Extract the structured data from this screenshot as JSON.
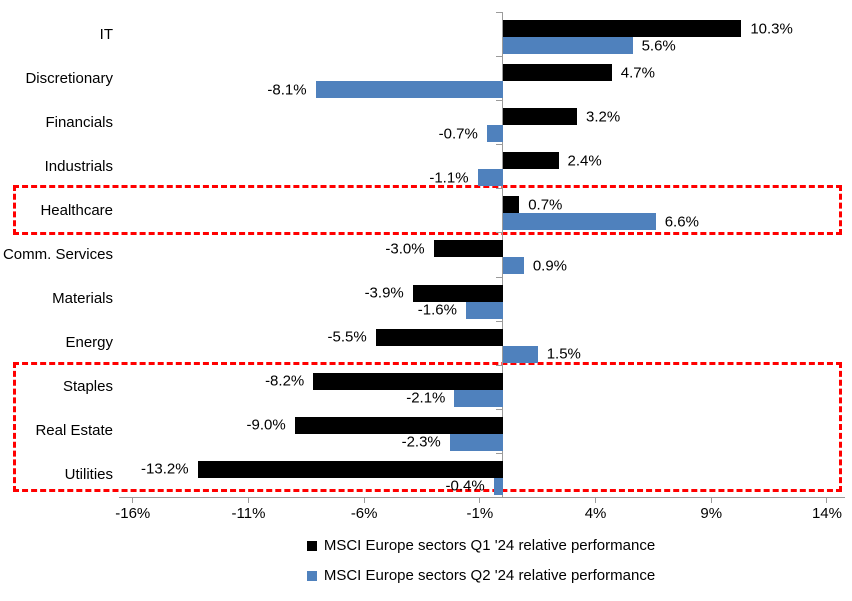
{
  "chart_data": {
    "type": "bar",
    "orientation": "horizontal",
    "title": "",
    "categories": [
      "IT",
      "Discretionary",
      "Financials",
      "Industrials",
      "Healthcare",
      "Comm. Services",
      "Materials",
      "Energy",
      "Staples",
      "Real Estate",
      "Utilities"
    ],
    "series": [
      {
        "name": "MSCI Europe sectors Q1 '24 relative performance",
        "color": "#000000",
        "values": [
          10.3,
          4.7,
          3.2,
          2.4,
          0.7,
          -3.0,
          -3.9,
          -5.5,
          -8.2,
          -9.0,
          -13.2
        ]
      },
      {
        "name": "MSCI Europe sectors Q2 '24 relative performance",
        "color": "#4F81BD",
        "values": [
          5.6,
          -8.1,
          -0.7,
          -1.1,
          6.6,
          0.9,
          -1.6,
          1.5,
          -2.1,
          -2.3,
          -0.4
        ]
      }
    ],
    "value_label_suffix": "%",
    "value_label_decimals": 1,
    "x_axis": {
      "ticks": [
        -16,
        -11,
        -6,
        -1,
        4,
        9,
        14
      ],
      "suffix": "%",
      "min": -17.5,
      "max": 15
    },
    "axis_color": "#9b9b9b",
    "grid": false,
    "legend_position": "bottom",
    "highlights": [
      {
        "sectors": [
          "Healthcare"
        ],
        "color": "#ff0000"
      },
      {
        "sectors": [
          "Staples",
          "Real Estate",
          "Utilities"
        ],
        "color": "#ff0000"
      }
    ]
  }
}
